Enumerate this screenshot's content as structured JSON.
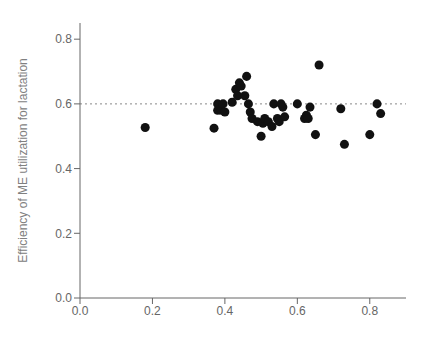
{
  "chart_data": {
    "type": "scatter",
    "y_label": "Efficiency of ME utilization for lactation",
    "x": [
      0.18,
      0.37,
      0.38,
      0.38,
      0.39,
      0.395,
      0.4,
      0.42,
      0.43,
      0.435,
      0.44,
      0.445,
      0.455,
      0.46,
      0.465,
      0.47,
      0.475,
      0.49,
      0.5,
      0.505,
      0.51,
      0.52,
      0.53,
      0.535,
      0.545,
      0.55,
      0.555,
      0.56,
      0.565,
      0.6,
      0.62,
      0.625,
      0.63,
      0.635,
      0.65,
      0.66,
      0.72,
      0.73,
      0.8,
      0.82,
      0.83
    ],
    "values": [
      0.527,
      0.525,
      0.6,
      0.58,
      0.58,
      0.6,
      0.575,
      0.605,
      0.645,
      0.625,
      0.665,
      0.655,
      0.625,
      0.685,
      0.6,
      0.575,
      0.555,
      0.545,
      0.5,
      0.54,
      0.555,
      0.545,
      0.53,
      0.6,
      0.555,
      0.545,
      0.6,
      0.59,
      0.56,
      0.6,
      0.555,
      0.565,
      0.555,
      0.59,
      0.505,
      0.72,
      0.585,
      0.475,
      0.505,
      0.6,
      0.57
    ],
    "color": "#111111",
    "xlim": [
      0.0,
      0.9
    ],
    "ylim": [
      0.0,
      0.85
    ],
    "xticks": [
      {
        "value": 0,
        "label": "0.0"
      },
      0.2,
      0.4,
      0.6,
      0.8
    ],
    "yticks": [
      {
        "value": 0,
        "label": "0.0"
      },
      0.2,
      0.4,
      0.6,
      0.8
    ],
    "reference_lines": [
      {
        "y": 0.6,
        "color": "#888888",
        "line_style": "dotted"
      }
    ],
    "grid": false
  }
}
